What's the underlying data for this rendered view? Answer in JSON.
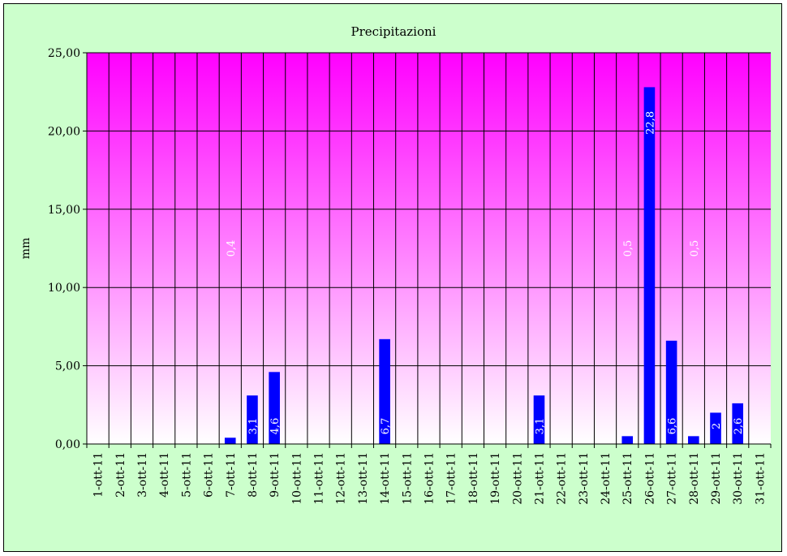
{
  "chart_data": {
    "type": "bar",
    "title": "Precipitazioni",
    "xlabel": "",
    "ylabel": "mm",
    "ylim": [
      0,
      25
    ],
    "yticks": [
      "0,00",
      "5,00",
      "10,00",
      "15,00",
      "20,00",
      "25,00"
    ],
    "grid": true,
    "legend": "none",
    "categories": [
      "1-ott-11",
      "2-ott-11",
      "3-ott-11",
      "4-ott-11",
      "5-ott-11",
      "6-ott-11",
      "7-ott-11",
      "8-ott-11",
      "9-ott-11",
      "10-ott-11",
      "11-ott-11",
      "12-ott-11",
      "13-ott-11",
      "14-ott-11",
      "15-ott-11",
      "16-ott-11",
      "17-ott-11",
      "18-ott-11",
      "19-ott-11",
      "20-ott-11",
      "21-ott-11",
      "22-ott-11",
      "23-ott-11",
      "24-ott-11",
      "25-ott-11",
      "26-ott-11",
      "27-ott-11",
      "28-ott-11",
      "29-ott-11",
      "30-ott-11",
      "31-ott-11"
    ],
    "values": [
      0,
      0,
      0,
      0,
      0,
      0,
      0.4,
      3.1,
      4.6,
      0,
      0,
      0,
      0,
      6.7,
      0,
      0,
      0,
      0,
      0,
      0,
      3.1,
      0,
      0,
      0,
      0.5,
      22.8,
      6.6,
      0.5,
      2,
      2.6,
      0
    ],
    "data_labels": [
      "",
      "",
      "",
      "",
      "",
      "",
      "0,4",
      "3,1",
      "4,6",
      "",
      "",
      "",
      "",
      "6,7",
      "",
      "",
      "",
      "",
      "",
      "",
      "3,1",
      "",
      "",
      "",
      "0,5",
      "22,8",
      "6,6",
      "0,5",
      "2",
      "2,6",
      ""
    ],
    "colors": {
      "bar": "#0000ff",
      "plot_top": "#ff00ff",
      "plot_bottom": "#ffffff",
      "background": "#ccffcc",
      "data_label": "#ffffff"
    }
  }
}
